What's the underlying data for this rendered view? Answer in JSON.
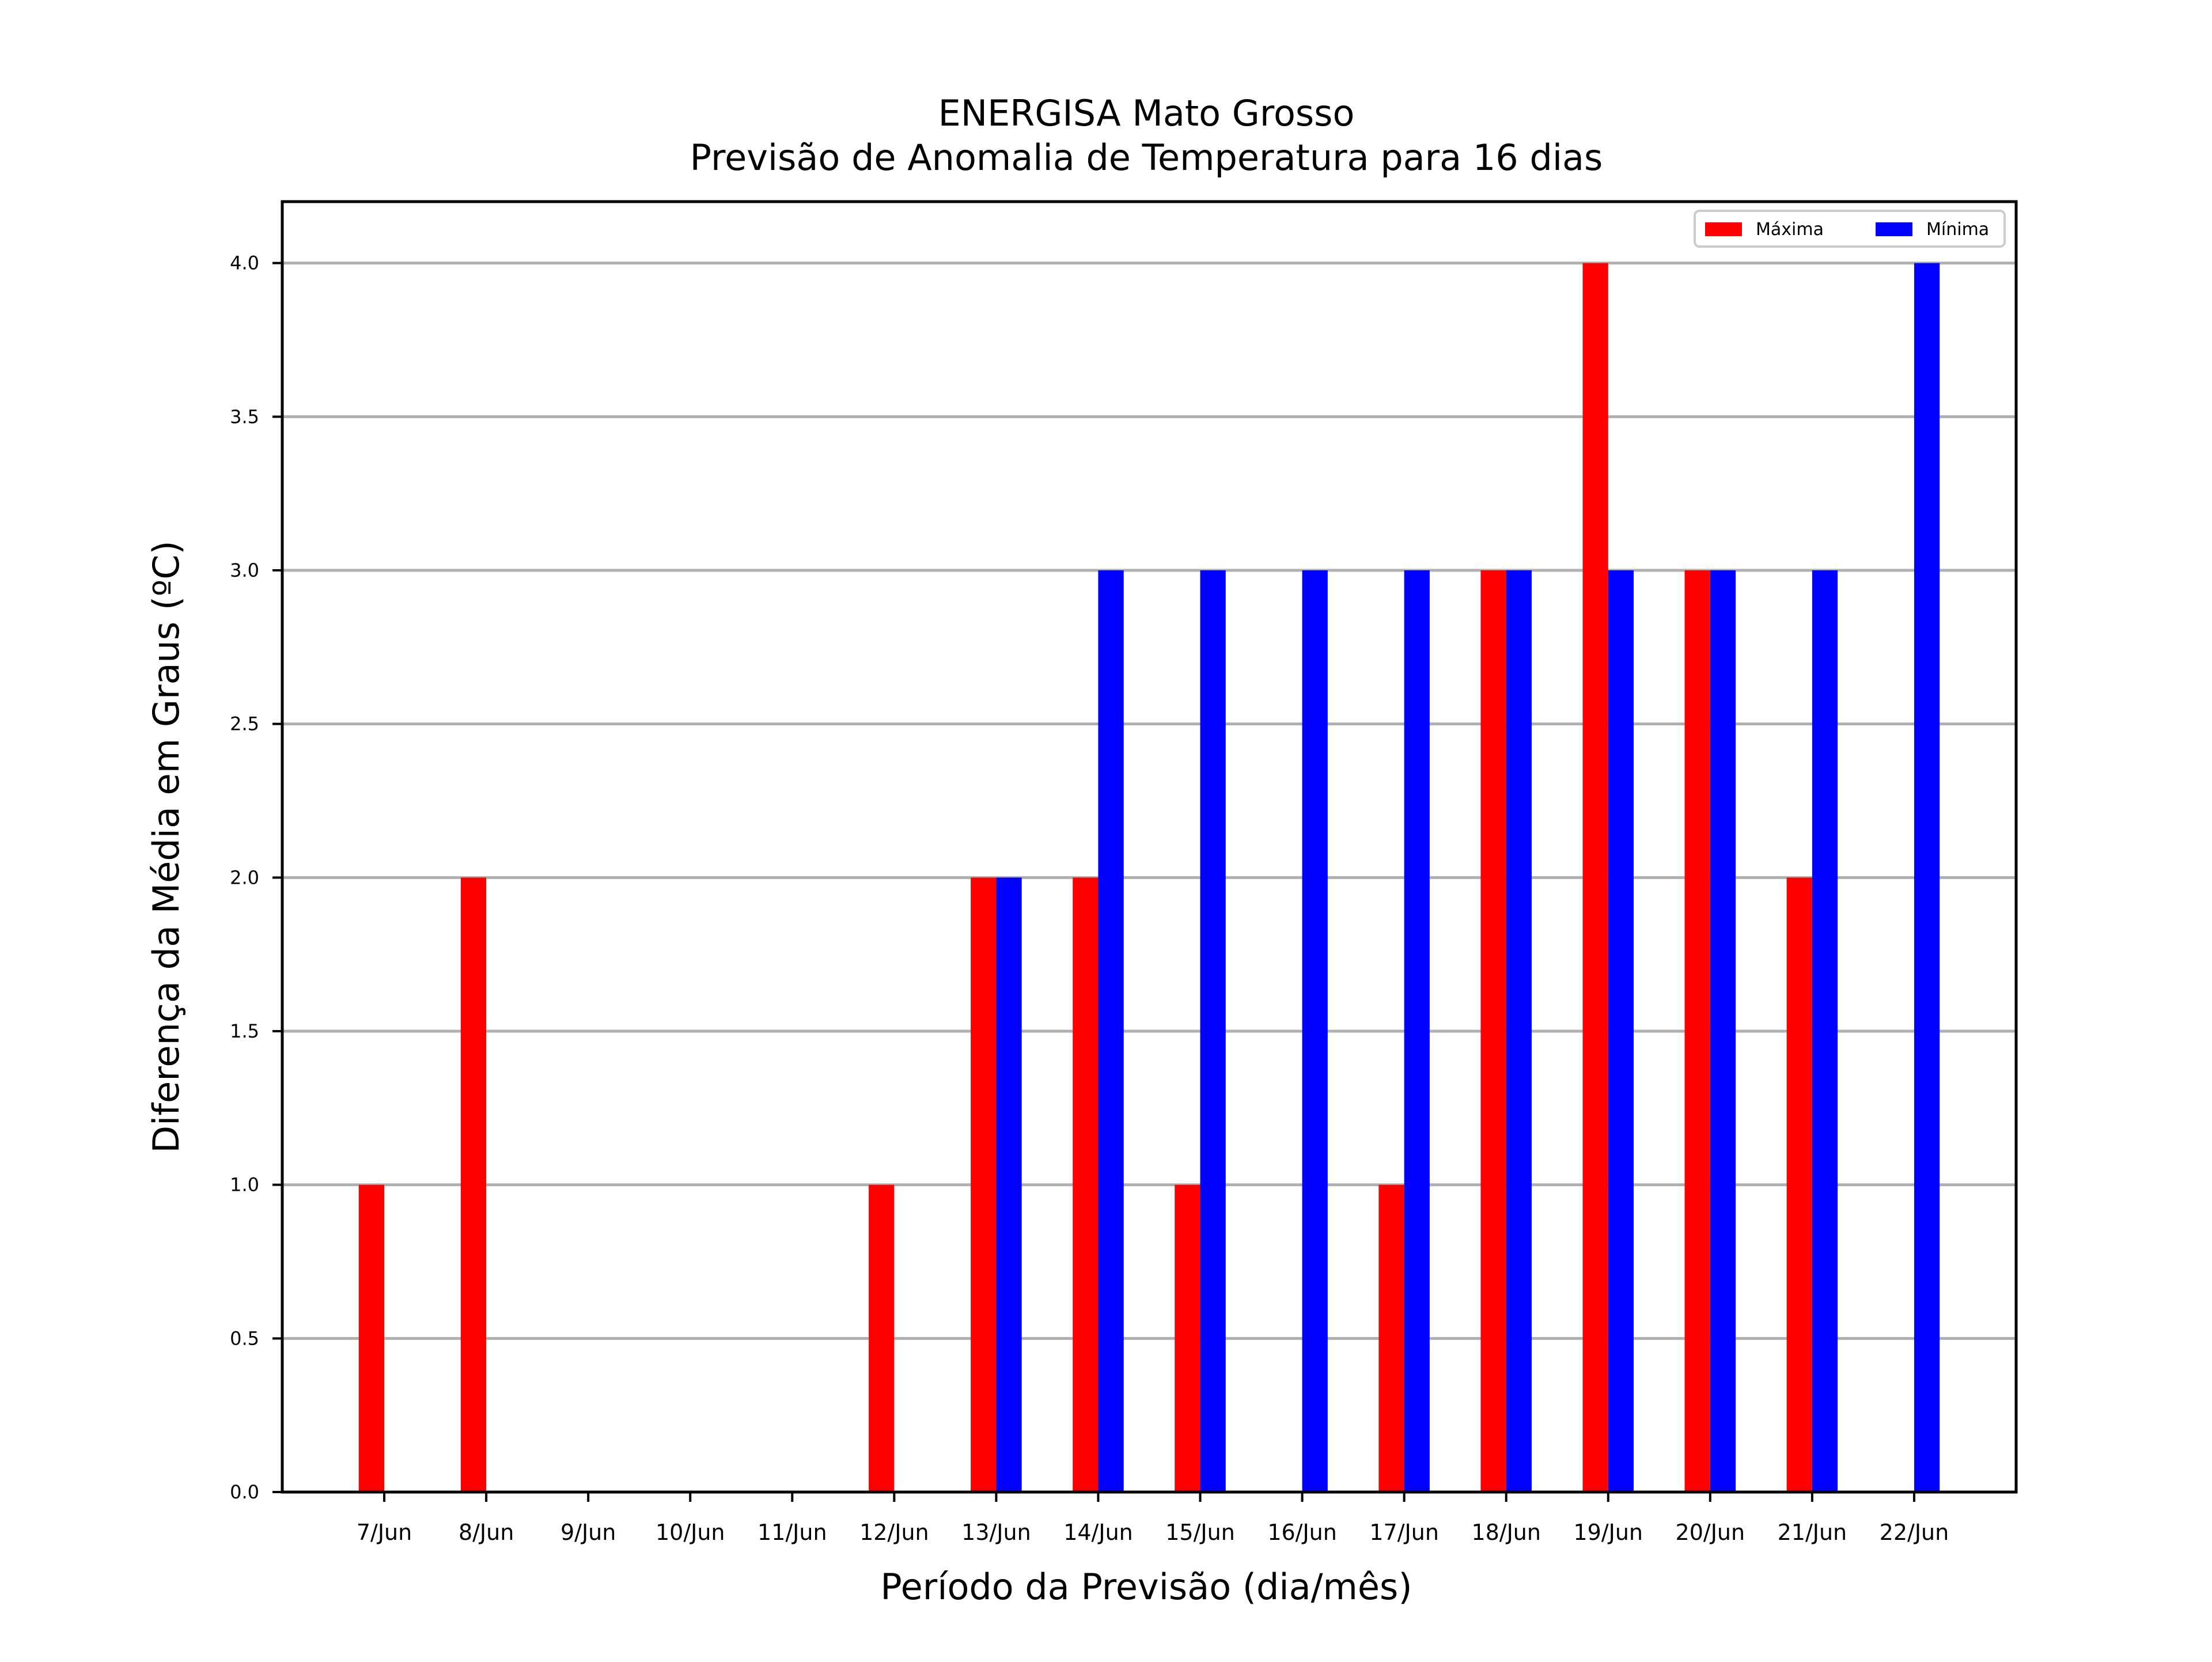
{
  "chart_data": {
    "type": "bar",
    "title": "ENERGISA Mato Grosso",
    "subtitle": "Previsão de Anomalia de Temperatura para 16 dias",
    "xlabel": "Período da Previsão (dia/mês)",
    "ylabel": "Diferença da Média em Graus (ºC)",
    "categories": [
      "7/Jun",
      "8/Jun",
      "9/Jun",
      "10/Jun",
      "11/Jun",
      "12/Jun",
      "13/Jun",
      "14/Jun",
      "15/Jun",
      "16/Jun",
      "17/Jun",
      "18/Jun",
      "19/Jun",
      "20/Jun",
      "21/Jun",
      "22/Jun"
    ],
    "series": [
      {
        "name": "Máxima",
        "color": "#ff0000",
        "values": [
          1,
          2,
          0,
          0,
          0,
          1,
          2,
          2,
          1,
          0,
          1,
          3,
          4,
          3,
          2,
          0
        ]
      },
      {
        "name": "Mínima",
        "color": "#0000ff",
        "values": [
          0,
          0,
          0,
          0,
          0,
          0,
          2,
          3,
          3,
          3,
          3,
          3,
          3,
          3,
          3,
          4
        ]
      }
    ],
    "ylim": [
      0,
      4.2
    ],
    "yticks": [
      "0.0",
      "0.5",
      "1.0",
      "1.5",
      "2.0",
      "2.5",
      "3.0",
      "3.5",
      "4.0"
    ],
    "grid": true,
    "grid_color": "#b0b0b0",
    "legend_position": "top-right"
  }
}
